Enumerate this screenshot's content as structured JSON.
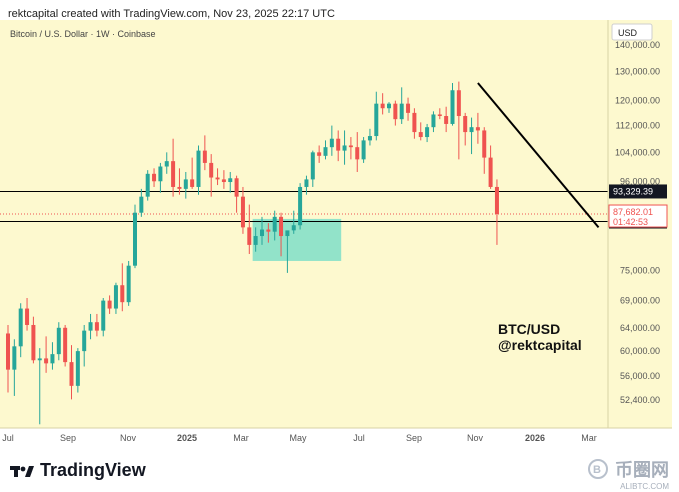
{
  "header": {
    "attribution": "rektcapital created with TradingView.com, Nov 23, 2025 22:17 UTC"
  },
  "footer": {
    "brand": "TradingView",
    "watermark_cn": "币圈网",
    "watermark_url": "ALIBTC.COM"
  },
  "colors": {
    "background": "#fdf9cf",
    "up": "#26a69a",
    "down": "#ef5350",
    "box": "#7fdfc8",
    "trendline": "#000000"
  },
  "chart_data": {
    "type": "candlestick",
    "symbol_line": "Bitcoin / U.S. Dollar · 1W · Coinbase",
    "currency": "USD",
    "interval": "1W",
    "scale": "log",
    "ylim": [
      48500,
      150000
    ],
    "x_labels": [
      "Jul",
      "Sep",
      "Nov",
      "2025",
      "Mar",
      "May",
      "Jul",
      "Sep",
      "Nov",
      "2026",
      "Mar"
    ],
    "y_ticks": [
      52400,
      56000,
      60000,
      64000,
      69000,
      75000,
      96000,
      104000,
      112000,
      120000,
      130000,
      140000
    ],
    "y_tick_labels": [
      "52,400.00",
      "56,000.00",
      "60,000.00",
      "64,000.00",
      "69,000.00",
      "75,000.00",
      "96,000.00",
      "104,000.00",
      "112,000.00",
      "120,000.00",
      "130,000.00",
      "140,000.00"
    ],
    "horizontal_levels": [
      {
        "price": 93329.39,
        "label": "93,329.39",
        "color": "#000000"
      },
      {
        "price": 85880.08,
        "label": "85,880.08",
        "color": "#000000"
      }
    ],
    "current_price": {
      "price": 87682.01,
      "label": "87,682.01",
      "countdown": "01:42:53",
      "color": "#ef5350"
    },
    "support_box": {
      "start_week": 39,
      "end_week": 52,
      "low": 77000,
      "high": 86500
    },
    "trendline": {
      "start_week": 74,
      "start_price": 126000,
      "end_week": 93,
      "end_price": 84500
    },
    "annotation": [
      "BTC/USD",
      "@rektcapital"
    ],
    "candles": [
      {
        "o": 63000,
        "h": 64500,
        "l": 53500,
        "c": 57000
      },
      {
        "o": 57000,
        "h": 62000,
        "l": 53000,
        "c": 60800
      },
      {
        "o": 60800,
        "h": 68500,
        "l": 59000,
        "c": 67500
      },
      {
        "o": 67500,
        "h": 69500,
        "l": 63500,
        "c": 64500
      },
      {
        "o": 64500,
        "h": 66000,
        "l": 58000,
        "c": 58500
      },
      {
        "o": 58500,
        "h": 60500,
        "l": 49000,
        "c": 58800
      },
      {
        "o": 58800,
        "h": 62500,
        "l": 56500,
        "c": 58000
      },
      {
        "o": 58000,
        "h": 61500,
        "l": 57000,
        "c": 59500
      },
      {
        "o": 59500,
        "h": 65000,
        "l": 58500,
        "c": 64000
      },
      {
        "o": 64000,
        "h": 64500,
        "l": 57500,
        "c": 58200
      },
      {
        "o": 58200,
        "h": 61000,
        "l": 52500,
        "c": 54500
      },
      {
        "o": 54500,
        "h": 60500,
        "l": 53500,
        "c": 60000
      },
      {
        "o": 60000,
        "h": 64500,
        "l": 57500,
        "c": 63500
      },
      {
        "o": 63500,
        "h": 66500,
        "l": 62000,
        "c": 65000
      },
      {
        "o": 65000,
        "h": 66500,
        "l": 62500,
        "c": 63500
      },
      {
        "o": 63500,
        "h": 69500,
        "l": 62500,
        "c": 69000
      },
      {
        "o": 69000,
        "h": 70000,
        "l": 66500,
        "c": 67500
      },
      {
        "o": 67500,
        "h": 72500,
        "l": 66500,
        "c": 72000
      },
      {
        "o": 72000,
        "h": 76500,
        "l": 67000,
        "c": 68700
      },
      {
        "o": 68700,
        "h": 77000,
        "l": 68000,
        "c": 76000
      },
      {
        "o": 76000,
        "h": 90000,
        "l": 75500,
        "c": 88000
      },
      {
        "o": 88000,
        "h": 94000,
        "l": 87000,
        "c": 92000
      },
      {
        "o": 92000,
        "h": 99000,
        "l": 91000,
        "c": 98000
      },
      {
        "o": 98000,
        "h": 99500,
        "l": 94500,
        "c": 96000
      },
      {
        "o": 96000,
        "h": 101000,
        "l": 93000,
        "c": 100000
      },
      {
        "o": 100000,
        "h": 104000,
        "l": 98000,
        "c": 101500
      },
      {
        "o": 101500,
        "h": 108000,
        "l": 92000,
        "c": 94500
      },
      {
        "o": 94500,
        "h": 99500,
        "l": 92500,
        "c": 94000
      },
      {
        "o": 94000,
        "h": 98500,
        "l": 91500,
        "c": 96500
      },
      {
        "o": 96500,
        "h": 102500,
        "l": 94000,
        "c": 94500
      },
      {
        "o": 94500,
        "h": 106000,
        "l": 92500,
        "c": 104500
      },
      {
        "o": 104500,
        "h": 109000,
        "l": 99000,
        "c": 101000
      },
      {
        "o": 101000,
        "h": 103500,
        "l": 92000,
        "c": 97000
      },
      {
        "o": 97000,
        "h": 99500,
        "l": 95000,
        "c": 96500
      },
      {
        "o": 96500,
        "h": 99000,
        "l": 94000,
        "c": 95800
      },
      {
        "o": 95800,
        "h": 98500,
        "l": 93000,
        "c": 96800
      },
      {
        "o": 96800,
        "h": 97500,
        "l": 88000,
        "c": 92000
      },
      {
        "o": 92000,
        "h": 94500,
        "l": 83000,
        "c": 84500
      },
      {
        "o": 84500,
        "h": 90000,
        "l": 78500,
        "c": 80500
      },
      {
        "o": 80500,
        "h": 84500,
        "l": 79000,
        "c": 82500
      },
      {
        "o": 82500,
        "h": 87000,
        "l": 80500,
        "c": 84000
      },
      {
        "o": 84000,
        "h": 85500,
        "l": 81000,
        "c": 83500
      },
      {
        "o": 83500,
        "h": 88500,
        "l": 81500,
        "c": 87000
      },
      {
        "o": 87000,
        "h": 88000,
        "l": 78000,
        "c": 82500
      },
      {
        "o": 82500,
        "h": 83500,
        "l": 74500,
        "c": 83800
      },
      {
        "o": 83800,
        "h": 88500,
        "l": 83000,
        "c": 85000
      },
      {
        "o": 85000,
        "h": 95500,
        "l": 84000,
        "c": 94500
      },
      {
        "o": 94500,
        "h": 97500,
        "l": 92500,
        "c": 96500
      },
      {
        "o": 96500,
        "h": 104500,
        "l": 94500,
        "c": 104000
      },
      {
        "o": 104000,
        "h": 106000,
        "l": 101000,
        "c": 103000
      },
      {
        "o": 103000,
        "h": 107500,
        "l": 102000,
        "c": 105500
      },
      {
        "o": 105500,
        "h": 112000,
        "l": 103000,
        "c": 108000
      },
      {
        "o": 108000,
        "h": 110500,
        "l": 101500,
        "c": 104500
      },
      {
        "o": 104500,
        "h": 110500,
        "l": 100500,
        "c": 106000
      },
      {
        "o": 106000,
        "h": 108500,
        "l": 102000,
        "c": 105500
      },
      {
        "o": 105500,
        "h": 110000,
        "l": 98500,
        "c": 102000
      },
      {
        "o": 102000,
        "h": 108500,
        "l": 101000,
        "c": 107500
      },
      {
        "o": 107500,
        "h": 111000,
        "l": 106000,
        "c": 108800
      },
      {
        "o": 108800,
        "h": 123000,
        "l": 107500,
        "c": 119000
      },
      {
        "o": 119000,
        "h": 122500,
        "l": 115500,
        "c": 117500
      },
      {
        "o": 117500,
        "h": 119500,
        "l": 116000,
        "c": 119000
      },
      {
        "o": 119000,
        "h": 120000,
        "l": 112000,
        "c": 114000
      },
      {
        "o": 114000,
        "h": 124500,
        "l": 112500,
        "c": 119000
      },
      {
        "o": 119000,
        "h": 121000,
        "l": 113500,
        "c": 116000
      },
      {
        "o": 116000,
        "h": 117500,
        "l": 108000,
        "c": 110000
      },
      {
        "o": 110000,
        "h": 113000,
        "l": 107500,
        "c": 108500
      },
      {
        "o": 108500,
        "h": 112500,
        "l": 107000,
        "c": 111500
      },
      {
        "o": 111500,
        "h": 116500,
        "l": 110000,
        "c": 115500
      },
      {
        "o": 115500,
        "h": 117500,
        "l": 114000,
        "c": 115000
      },
      {
        "o": 115000,
        "h": 118000,
        "l": 110000,
        "c": 112500
      },
      {
        "o": 112500,
        "h": 126000,
        "l": 112000,
        "c": 123500
      },
      {
        "o": 123500,
        "h": 126500,
        "l": 102000,
        "c": 115000
      },
      {
        "o": 115000,
        "h": 116000,
        "l": 106000,
        "c": 110000
      },
      {
        "o": 110000,
        "h": 114500,
        "l": 103500,
        "c": 111500
      },
      {
        "o": 111500,
        "h": 116000,
        "l": 106500,
        "c": 110500
      },
      {
        "o": 110500,
        "h": 111500,
        "l": 98000,
        "c": 102500
      },
      {
        "o": 102500,
        "h": 106000,
        "l": 94000,
        "c": 94500
      },
      {
        "o": 94500,
        "h": 96500,
        "l": 80500,
        "c": 87682
      }
    ]
  }
}
